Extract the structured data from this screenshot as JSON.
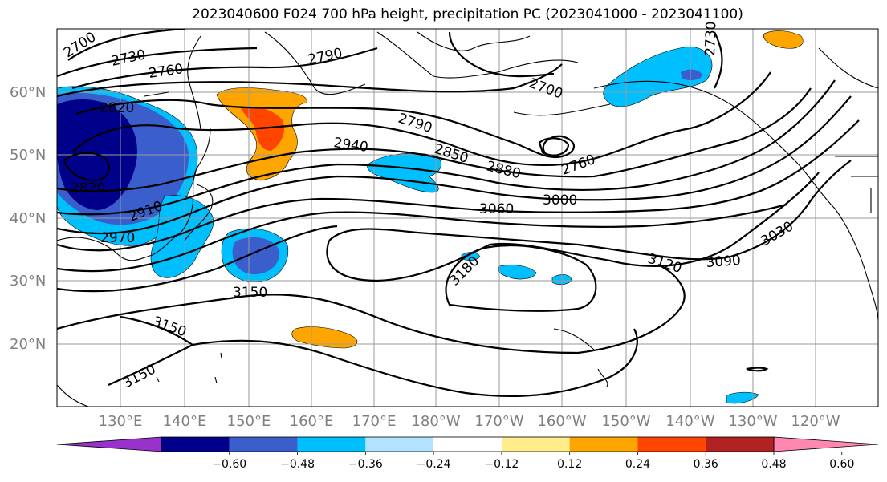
{
  "title": "2023040600 F024 700 hPa height, precipitation PC (2023041000 - 2023041100)",
  "lon_labels": [
    "130°E",
    "140°E",
    "150°E",
    "160°E",
    "170°E",
    "180°W",
    "170°W",
    "160°W",
    "150°W",
    "140°W",
    "130°W",
    "120°W"
  ],
  "lat_labels": [
    "60°N",
    "50°N",
    "40°N",
    "30°N",
    "20°N"
  ],
  "contour_labels": [
    {
      "text": "2700"
    },
    {
      "text": "2730"
    },
    {
      "text": "2760"
    },
    {
      "text": "2790"
    },
    {
      "text": "2820"
    },
    {
      "text": "2820"
    },
    {
      "text": "2910"
    },
    {
      "text": "2970"
    },
    {
      "text": "2940"
    },
    {
      "text": "2790"
    },
    {
      "text": "2850"
    },
    {
      "text": "2880"
    },
    {
      "text": "2700"
    },
    {
      "text": "2760"
    },
    {
      "text": "3000"
    },
    {
      "text": "3060"
    },
    {
      "text": "3030"
    },
    {
      "text": "3090"
    },
    {
      "text": "3120"
    },
    {
      "text": "3180"
    },
    {
      "text": "3150"
    },
    {
      "text": "3150"
    },
    {
      "text": "3150"
    },
    {
      "text": "2730"
    }
  ],
  "colorbar": {
    "ticks": [
      "−0.60",
      "−0.48",
      "−0.36",
      "−0.24",
      "−0.12",
      "0.12",
      "0.24",
      "0.36",
      "0.48",
      "0.60"
    ],
    "colors": [
      "#9932cc",
      "#00008b",
      "#3a5fcd",
      "#00bfff",
      "#b2e2ff",
      "#ffffff",
      "#ffec8b",
      "#ffa500",
      "#ff4500",
      "#b22222",
      "#ff87b0"
    ]
  }
}
